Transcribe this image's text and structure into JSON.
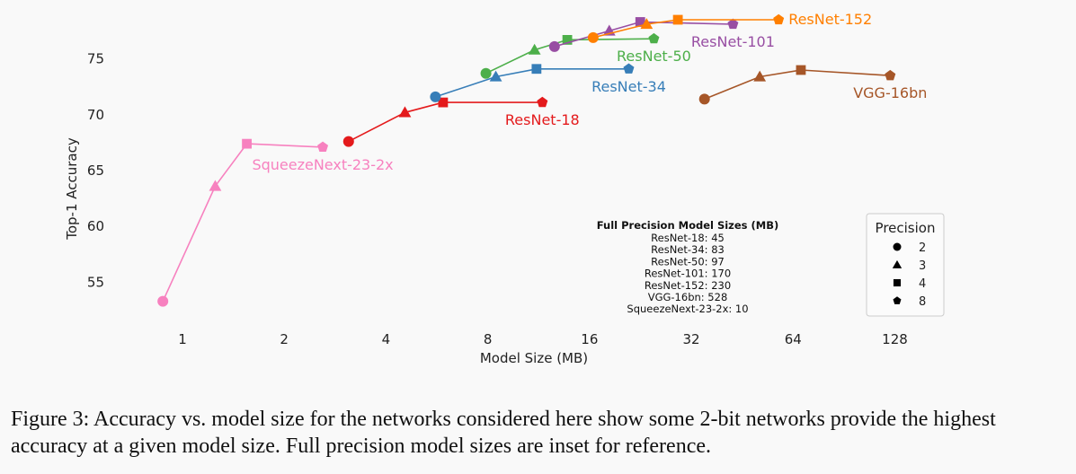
{
  "chart_data": {
    "type": "scatter",
    "xlabel": "Model Size (MB)",
    "ylabel": "Top-1 Accuracy",
    "x_scale": "log2",
    "xlim": [
      0.75,
      190
    ],
    "ylim": [
      51.5,
      78.5
    ],
    "x_ticks": [
      1,
      2,
      4,
      8,
      16,
      32,
      64,
      128
    ],
    "x_tick_labels": [
      "1",
      "2",
      "4",
      "8",
      "16",
      "32",
      "64",
      "128"
    ],
    "y_ticks": [
      55,
      60,
      65,
      70,
      75
    ],
    "y_tick_labels": [
      "55",
      "60",
      "65",
      "70",
      "75"
    ],
    "series": [
      {
        "name": "SqueezeNext-23-2x",
        "color": "#f781bf",
        "label_anchor": "below",
        "points": [
          {
            "x": 0.875,
            "y": 53.3,
            "bits": 2
          },
          {
            "x": 1.25,
            "y": 63.6,
            "bits": 3
          },
          {
            "x": 1.55,
            "y": 67.4,
            "bits": 4
          },
          {
            "x": 2.6,
            "y": 67.1,
            "bits": 8
          }
        ]
      },
      {
        "name": "ResNet-18",
        "color": "#e41a1c",
        "label_anchor": "below",
        "points": [
          {
            "x": 3.1,
            "y": 67.6,
            "bits": 2
          },
          {
            "x": 4.55,
            "y": 70.2,
            "bits": 3
          },
          {
            "x": 5.9,
            "y": 71.1,
            "bits": 4
          },
          {
            "x": 11.6,
            "y": 71.1,
            "bits": 8
          }
        ]
      },
      {
        "name": "ResNet-34",
        "color": "#377eb8",
        "label_anchor": "below",
        "points": [
          {
            "x": 5.6,
            "y": 71.6,
            "bits": 2
          },
          {
            "x": 8.45,
            "y": 73.4,
            "bits": 3
          },
          {
            "x": 11.15,
            "y": 74.1,
            "bits": 4
          },
          {
            "x": 20.9,
            "y": 74.1,
            "bits": 8
          }
        ]
      },
      {
        "name": "ResNet-50",
        "color": "#4daf4a",
        "label_anchor": "below",
        "points": [
          {
            "x": 7.9,
            "y": 73.7,
            "bits": 2
          },
          {
            "x": 11.0,
            "y": 75.8,
            "bits": 3
          },
          {
            "x": 13.75,
            "y": 76.7,
            "bits": 4
          },
          {
            "x": 24.8,
            "y": 76.8,
            "bits": 8
          }
        ]
      },
      {
        "name": "ResNet-101",
        "color": "#984ea3",
        "label_anchor": "below",
        "points": [
          {
            "x": 12.6,
            "y": 76.1,
            "bits": 2
          },
          {
            "x": 18.3,
            "y": 77.5,
            "bits": 3
          },
          {
            "x": 22.6,
            "y": 78.3,
            "bits": 4
          },
          {
            "x": 42.5,
            "y": 78.1,
            "bits": 8
          }
        ]
      },
      {
        "name": "ResNet-152",
        "color": "#ff7f00",
        "label_anchor": "right",
        "points": [
          {
            "x": 16.4,
            "y": 76.9,
            "bits": 2
          },
          {
            "x": 23.6,
            "y": 78.1,
            "bits": 3
          },
          {
            "x": 29.2,
            "y": 78.5,
            "bits": 4
          },
          {
            "x": 58.0,
            "y": 78.5,
            "bits": 8
          }
        ]
      },
      {
        "name": "VGG-16bn",
        "color": "#a65628",
        "label_anchor": "below",
        "points": [
          {
            "x": 35.0,
            "y": 71.4,
            "bits": 2
          },
          {
            "x": 51.0,
            "y": 73.4,
            "bits": 3
          },
          {
            "x": 67.5,
            "y": 74.0,
            "bits": 4
          },
          {
            "x": 124.0,
            "y": 73.5,
            "bits": 8
          }
        ]
      }
    ],
    "inset": {
      "title": "Full Precision Model Sizes (MB)",
      "lines": [
        "ResNet-18: 45",
        "ResNet-34: 83",
        "ResNet-50: 97",
        "ResNet-101: 170",
        "ResNet-152: 230",
        "VGG-16bn: 528",
        "SqueezeNext-23-2x: 10"
      ]
    },
    "legend": {
      "title": "Precision",
      "placement": "bottom-right",
      "entries": [
        {
          "label": "2",
          "marker": "circle"
        },
        {
          "label": "3",
          "marker": "triangle"
        },
        {
          "label": "4",
          "marker": "square"
        },
        {
          "label": "8",
          "marker": "pentagon"
        }
      ]
    }
  },
  "caption": {
    "label": "Figure 3:",
    "text": "Accuracy vs. model size for the networks considered here show some 2-bit networks provide the highest accuracy at a given model size. Full precision model sizes are inset for reference."
  }
}
